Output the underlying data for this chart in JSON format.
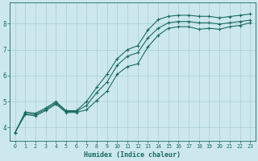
{
  "xlabel": "Humidex (Indice chaleur)",
  "ylabel": "",
  "bg_color": "#cce8ee",
  "grid_color": "#aacdd5",
  "line_color": "#1a6b5e",
  "xlim": [
    -0.5,
    23.5
  ],
  "ylim": [
    3.5,
    8.8
  ],
  "xticks": [
    0,
    1,
    2,
    3,
    4,
    5,
    6,
    7,
    8,
    9,
    10,
    11,
    12,
    13,
    14,
    15,
    16,
    17,
    18,
    19,
    20,
    21,
    22,
    23
  ],
  "yticks": [
    4,
    5,
    6,
    7,
    8
  ],
  "curve1_x": [
    0,
    1,
    2,
    3,
    4,
    5,
    6,
    7,
    8,
    9,
    10,
    11,
    12,
    13,
    14,
    15,
    16,
    17,
    18,
    19,
    20,
    21,
    22,
    23
  ],
  "curve1_y": [
    3.8,
    4.6,
    4.55,
    4.75,
    5.0,
    4.65,
    4.65,
    5.0,
    5.55,
    6.05,
    6.65,
    7.0,
    7.15,
    7.75,
    8.15,
    8.28,
    8.32,
    8.32,
    8.28,
    8.28,
    8.22,
    8.27,
    8.32,
    8.37
  ],
  "curve2_x": [
    0,
    1,
    2,
    3,
    4,
    5,
    6,
    7,
    8,
    9,
    10,
    11,
    12,
    13,
    14,
    15,
    16,
    17,
    18,
    19,
    20,
    21,
    22,
    23
  ],
  "curve2_y": [
    3.8,
    4.55,
    4.5,
    4.7,
    4.95,
    4.62,
    4.62,
    4.85,
    5.35,
    5.75,
    6.4,
    6.75,
    6.88,
    7.45,
    7.82,
    8.03,
    8.08,
    8.08,
    8.03,
    8.03,
    7.98,
    8.03,
    8.08,
    8.13
  ],
  "curve3_x": [
    0,
    1,
    2,
    3,
    4,
    5,
    6,
    7,
    8,
    9,
    10,
    11,
    12,
    13,
    14,
    15,
    16,
    17,
    18,
    19,
    20,
    21,
    22,
    23
  ],
  "curve3_y": [
    3.8,
    4.5,
    4.45,
    4.65,
    4.9,
    4.58,
    4.58,
    4.68,
    5.05,
    5.4,
    6.05,
    6.35,
    6.45,
    7.1,
    7.55,
    7.82,
    7.88,
    7.88,
    7.78,
    7.82,
    7.78,
    7.88,
    7.93,
    8.03
  ],
  "marker": "+",
  "markersize": 3.5,
  "linewidth": 0.8
}
